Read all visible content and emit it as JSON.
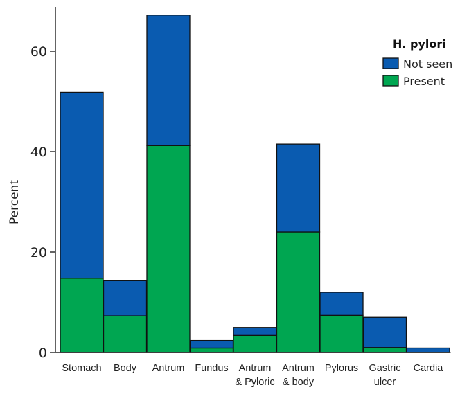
{
  "chart_data": {
    "type": "bar",
    "stacked": true,
    "title": "",
    "xlabel": "",
    "ylabel": "Percent",
    "ylim": [
      0,
      68
    ],
    "yticks": [
      0,
      20,
      40,
      60
    ],
    "categories": [
      [
        "Stomach"
      ],
      [
        "Body"
      ],
      [
        "Antrum"
      ],
      [
        "Fundus"
      ],
      [
        "Antrum",
        "& Pyloric"
      ],
      [
        "Antrum",
        "& body"
      ],
      [
        "Pylorus"
      ],
      [
        "Gastric",
        "ulcer"
      ],
      [
        "Cardia"
      ]
    ],
    "series": [
      {
        "name": "Present",
        "color": "#00a651",
        "values": [
          14.8,
          7.3,
          41.2,
          0.9,
          3.4,
          24.0,
          7.4,
          1.0,
          0.0
        ]
      },
      {
        "name": "Not seen",
        "color": "#0a5bb0",
        "values": [
          37.0,
          7.0,
          26.0,
          1.5,
          1.6,
          17.5,
          4.6,
          6.0,
          0.9
        ]
      }
    ],
    "legend": {
      "title": "H. pylori",
      "position": "top-right",
      "order": [
        "Not seen",
        "Present"
      ]
    },
    "grid": false
  }
}
